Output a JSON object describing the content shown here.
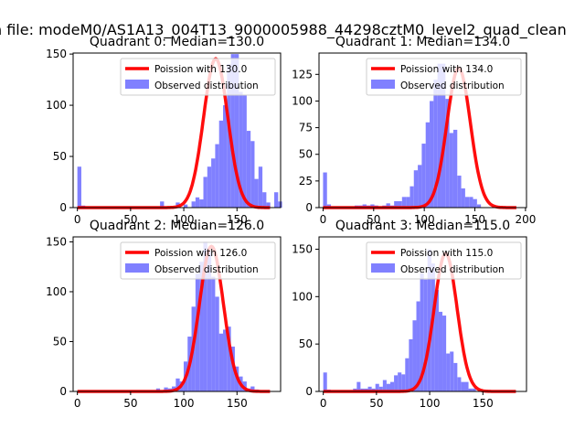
{
  "figure": {
    "suptitle": "n file: modeM0/AS1A13_004T13_9000005988_44298cztM0_level2_quad_clean"
  },
  "chart_data": [
    {
      "type": "bar",
      "title": "Quadrant 0: Median=130.0",
      "xlim": [
        -4,
        191
      ],
      "ylim": [
        0,
        151
      ],
      "xticks": [
        0,
        50,
        100,
        150
      ],
      "yticks": [
        0,
        50,
        100,
        150
      ],
      "median": 130.0,
      "legend_position": "upper right",
      "series": [
        {
          "name": "Poission with 130.0",
          "kind": "line",
          "color": "#ff0000"
        },
        {
          "name": "Observed distribution",
          "kind": "hist",
          "color": "#8080ff"
        }
      ],
      "bins": {
        "edges_start": 0,
        "bin_width": 3.7,
        "counts": [
          40,
          2,
          0,
          0,
          0,
          0,
          0,
          0,
          0,
          0,
          0,
          0,
          0,
          0,
          0,
          0,
          0,
          0,
          0,
          0,
          0,
          6,
          0,
          0,
          0,
          5,
          0,
          3,
          0,
          6,
          10,
          8,
          30,
          40,
          48,
          62,
          85,
          100,
          140,
          150,
          150,
          113,
          110,
          75,
          65,
          28,
          40,
          15,
          5,
          0,
          15,
          6
        ]
      }
    },
    {
      "type": "bar",
      "title": "Quadrant 1: Median=134.0",
      "xlim": [
        -4,
        201
      ],
      "ylim": [
        0,
        145
      ],
      "xticks": [
        0,
        50,
        100,
        150,
        200
      ],
      "yticks": [
        0,
        25,
        50,
        75,
        100,
        125
      ],
      "median": 134.0,
      "legend_position": "upper right",
      "series": [
        {
          "name": "Poission with 134.0",
          "kind": "line",
          "color": "#ff0000"
        },
        {
          "name": "Observed distribution",
          "kind": "hist",
          "color": "#8080ff"
        }
      ],
      "bins": {
        "edges_start": 0,
        "bin_width": 3.9,
        "counts": [
          33,
          3,
          0,
          0,
          0,
          0,
          0,
          0,
          2,
          2,
          3,
          2,
          3,
          2,
          0,
          2,
          4,
          2,
          6,
          6,
          10,
          10,
          20,
          35,
          40,
          60,
          80,
          100,
          120,
          135,
          135,
          102,
          70,
          73,
          30,
          18,
          10,
          10,
          8,
          3,
          0,
          0
        ]
      }
    },
    {
      "type": "bar",
      "title": "Quadrant 2: Median=126.0",
      "xlim": [
        -4,
        191
      ],
      "ylim": [
        0,
        155
      ],
      "xticks": [
        0,
        50,
        100,
        150
      ],
      "yticks": [
        0,
        50,
        100,
        150
      ],
      "median": 126.0,
      "legend_position": "upper right",
      "series": [
        {
          "name": "Poission with 126.0",
          "kind": "line",
          "color": "#ff0000"
        },
        {
          "name": "Observed distribution",
          "kind": "hist",
          "color": "#8080ff"
        }
      ],
      "bins": {
        "edges_start": 0,
        "bin_width": 3.7,
        "counts": [
          0,
          0,
          0,
          0,
          0,
          0,
          0,
          0,
          0,
          0,
          0,
          0,
          0,
          0,
          0,
          0,
          0,
          0,
          0,
          0,
          3,
          0,
          4,
          3,
          5,
          13,
          10,
          30,
          55,
          85,
          118,
          130,
          150,
          140,
          115,
          95,
          58,
          62,
          65,
          45,
          25,
          15,
          10,
          3,
          5,
          2,
          0,
          0,
          0,
          0
        ]
      }
    },
    {
      "type": "bar",
      "title": "Quadrant 3: Median=115.0",
      "xlim": [
        -4,
        191
      ],
      "ylim": [
        0,
        163
      ],
      "xticks": [
        0,
        50,
        100,
        150
      ],
      "yticks": [
        0,
        50,
        100,
        150
      ],
      "median": 115.0,
      "legend_position": "upper right",
      "series": [
        {
          "name": "Poission with 115.0",
          "kind": "line",
          "color": "#ff0000"
        },
        {
          "name": "Observed distribution",
          "kind": "hist",
          "color": "#8080ff"
        }
      ],
      "bins": {
        "edges_start": 0,
        "bin_width": 3.5,
        "counts": [
          20,
          2,
          0,
          0,
          0,
          0,
          0,
          0,
          3,
          10,
          3,
          3,
          5,
          3,
          8,
          5,
          12,
          8,
          10,
          17,
          20,
          18,
          35,
          55,
          75,
          95,
          125,
          118,
          150,
          135,
          107,
          84,
          80,
          40,
          42,
          30,
          15,
          10,
          10,
          3,
          3,
          0,
          0,
          0
        ]
      }
    }
  ]
}
